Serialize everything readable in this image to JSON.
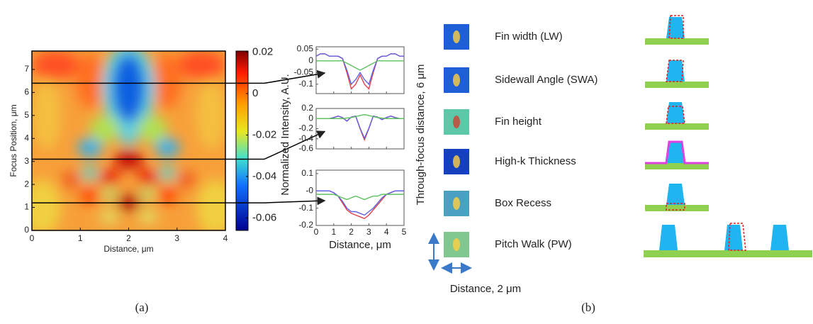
{
  "panel_a": {
    "label": "(a)",
    "heatmap": {
      "xlabel": "Distance, μm",
      "ylabel": "Focus Position, μm",
      "xlim": [
        0,
        4
      ],
      "ylim": [
        0,
        7.8
      ],
      "xticks": [
        0,
        1,
        2,
        3,
        4
      ],
      "yticks": [
        0,
        1,
        2,
        3,
        4,
        5,
        6,
        7
      ],
      "colorbar": {
        "lim": [
          -0.066,
          0.0205
        ],
        "ticks": [
          0.02,
          0,
          -0.02,
          -0.04,
          -0.06
        ]
      }
    },
    "profiles": {
      "ylabel": "Normalized Intensity, A.U.",
      "xlabel": "Distance, μm",
      "xlim": [
        0,
        5
      ],
      "xticks": [
        0,
        1,
        2,
        3,
        4,
        5
      ],
      "x": [
        0,
        0.25,
        0.5,
        0.75,
        1,
        1.25,
        1.5,
        1.75,
        2,
        2.25,
        2.5,
        2.75,
        3,
        3.25,
        3.5,
        3.75,
        4,
        4.25,
        4.5,
        4.75,
        5
      ],
      "plots": [
        {
          "ylim": [
            -0.14,
            0.06
          ],
          "yticks": [
            0.05,
            0,
            -0.05,
            -0.1
          ],
          "series": [
            {
              "color": "#e0404a",
              "values": [
                0.02,
                0.03,
                0.03,
                0.02,
                0.02,
                0.02,
                0.01,
                -0.05,
                -0.12,
                -0.1,
                -0.06,
                -0.1,
                -0.12,
                -0.05,
                0.01,
                0.02,
                0.02,
                0.03,
                0.03,
                0.02,
                0.02
              ]
            },
            {
              "color": "#6060e0",
              "values": [
                0.02,
                0.03,
                0.03,
                0.02,
                0.02,
                0.02,
                0.01,
                -0.04,
                -0.1,
                -0.08,
                -0.05,
                -0.08,
                -0.1,
                -0.04,
                0.01,
                0.02,
                0.02,
                0.03,
                0.03,
                0.02,
                0.02
              ]
            },
            {
              "color": "#60c060",
              "values": [
                0,
                0,
                0,
                0,
                0,
                0,
                0,
                -0.01,
                -0.02,
                -0.03,
                -0.04,
                -0.03,
                -0.02,
                -0.01,
                0,
                0,
                0,
                0,
                0,
                0,
                0
              ]
            }
          ]
        },
        {
          "ylim": [
            -0.6,
            0.2
          ],
          "yticks": [
            0.2,
            0,
            -0.2,
            -0.4,
            -0.6
          ],
          "series": [
            {
              "color": "#e0404a",
              "values": [
                0,
                0,
                0,
                0,
                0.02,
                0.05,
                0.02,
                -0.05,
                0.03,
                0.05,
                -0.2,
                -0.42,
                -0.2,
                0.05,
                0.03,
                -0.02,
                0.02,
                0.05,
                0.02,
                0,
                0
              ]
            },
            {
              "color": "#6060e0",
              "values": [
                0,
                0,
                0,
                0,
                0.02,
                0.05,
                0.02,
                -0.05,
                0.03,
                0.05,
                -0.19,
                -0.39,
                -0.19,
                0.05,
                0.03,
                -0.02,
                0.02,
                0.05,
                0.02,
                0,
                0
              ]
            },
            {
              "color": "#60c060",
              "values": [
                0,
                0,
                0,
                0,
                0,
                0,
                0,
                0.01,
                0.02,
                0.04,
                0.06,
                0.08,
                0.06,
                0.04,
                0.02,
                0.01,
                0,
                0,
                0,
                0,
                0
              ]
            }
          ]
        },
        {
          "ylim": [
            -0.2,
            0.12
          ],
          "yticks": [
            0.1,
            {
              "value": 0,
              "label": "-0"
            },
            -0.1,
            -0.2
          ],
          "series": [
            {
              "color": "#e0404a",
              "values": [
                0,
                0,
                0,
                0,
                -0.01,
                -0.03,
                -0.07,
                -0.11,
                -0.13,
                -0.14,
                -0.15,
                -0.16,
                -0.14,
                -0.11,
                -0.08,
                -0.05,
                -0.02,
                -0.01,
                0,
                0,
                0
              ]
            },
            {
              "color": "#6060e0",
              "values": [
                0,
                0,
                0,
                0,
                -0.01,
                -0.03,
                -0.06,
                -0.1,
                -0.12,
                -0.12,
                -0.13,
                -0.14,
                -0.12,
                -0.1,
                -0.07,
                -0.04,
                -0.02,
                -0.01,
                0,
                0,
                0
              ]
            },
            {
              "color": "#60c060",
              "values": [
                -0.02,
                -0.02,
                -0.02,
                -0.02,
                -0.02,
                -0.03,
                -0.04,
                -0.05,
                -0.04,
                -0.03,
                -0.04,
                -0.05,
                -0.04,
                -0.03,
                -0.03,
                -0.02,
                -0.02,
                -0.02,
                -0.02,
                -0.02,
                -0.02
              ]
            }
          ]
        }
      ]
    }
  },
  "panel_b": {
    "label": "(b)",
    "ylabel": "Through-focus distance, 6 μm",
    "xlabel": "Distance, 2 μm",
    "rows": [
      "Fin width (LW)",
      "Sidewall Angle (SWA)",
      "Fin height",
      "High-k Thickness",
      "Box Recess",
      "Pitch Walk (PW)"
    ]
  }
}
